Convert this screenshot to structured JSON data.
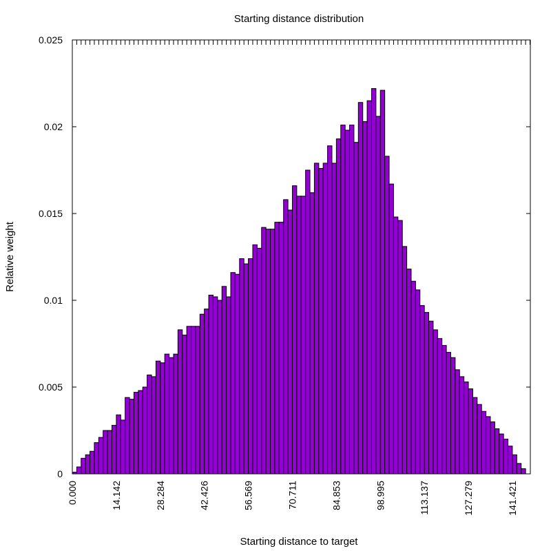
{
  "chart_data": {
    "type": "bar",
    "title": "Starting distance distribution",
    "xlabel": "Starting distance to target",
    "ylabel": "Relative weight",
    "xlim": [
      0,
      147.17
    ],
    "ylim": [
      0,
      0.025
    ],
    "xticks": [
      "0.000",
      "14.142",
      "28.284",
      "42.426",
      "56.569",
      "70.711",
      "84.853",
      "98.995",
      "113.137",
      "127.279",
      "141.421"
    ],
    "xtick_values": [
      0,
      14.142,
      28.284,
      42.426,
      56.569,
      70.711,
      84.853,
      98.995,
      113.137,
      127.279,
      141.421
    ],
    "yticks": [
      "0",
      "0.005",
      "0.01",
      "0.015",
      "0.02",
      "0.025"
    ],
    "ytick_values": [
      0,
      0.005,
      0.01,
      0.015,
      0.02,
      0.025
    ],
    "bin_start": 0,
    "bin_width": 1.414,
    "values": [
      0.0001,
      0.0004,
      0.0009,
      0.0011,
      0.0013,
      0.0018,
      0.0021,
      0.0025,
      0.0025,
      0.0028,
      0.0034,
      0.0031,
      0.0044,
      0.0043,
      0.0047,
      0.0048,
      0.005,
      0.0057,
      0.0056,
      0.0065,
      0.0064,
      0.0069,
      0.0067,
      0.0069,
      0.0083,
      0.008,
      0.0085,
      0.0085,
      0.0085,
      0.0092,
      0.0095,
      0.0103,
      0.0102,
      0.01,
      0.0108,
      0.0102,
      0.0116,
      0.0115,
      0.0124,
      0.0121,
      0.0124,
      0.0132,
      0.013,
      0.0142,
      0.0141,
      0.0141,
      0.0145,
      0.0145,
      0.0158,
      0.0152,
      0.0166,
      0.016,
      0.016,
      0.0175,
      0.0162,
      0.0179,
      0.0176,
      0.0179,
      0.0189,
      0.0179,
      0.0193,
      0.0201,
      0.0198,
      0.0201,
      0.0191,
      0.0214,
      0.0203,
      0.0215,
      0.0222,
      0.0206,
      0.0221,
      0.0183,
      0.0167,
      0.0148,
      0.0146,
      0.0131,
      0.0118,
      0.0111,
      0.0106,
      0.0097,
      0.0093,
      0.0088,
      0.0083,
      0.0078,
      0.0074,
      0.007,
      0.0067,
      0.006,
      0.0056,
      0.0053,
      0.0049,
      0.0044,
      0.004,
      0.0036,
      0.0033,
      0.003,
      0.0026,
      0.0023,
      0.002,
      0.0016,
      0.0011,
      0.0006,
      0.0003,
      0.0
    ],
    "bar_color": "#9400D3",
    "grid": false,
    "legend": "none"
  }
}
